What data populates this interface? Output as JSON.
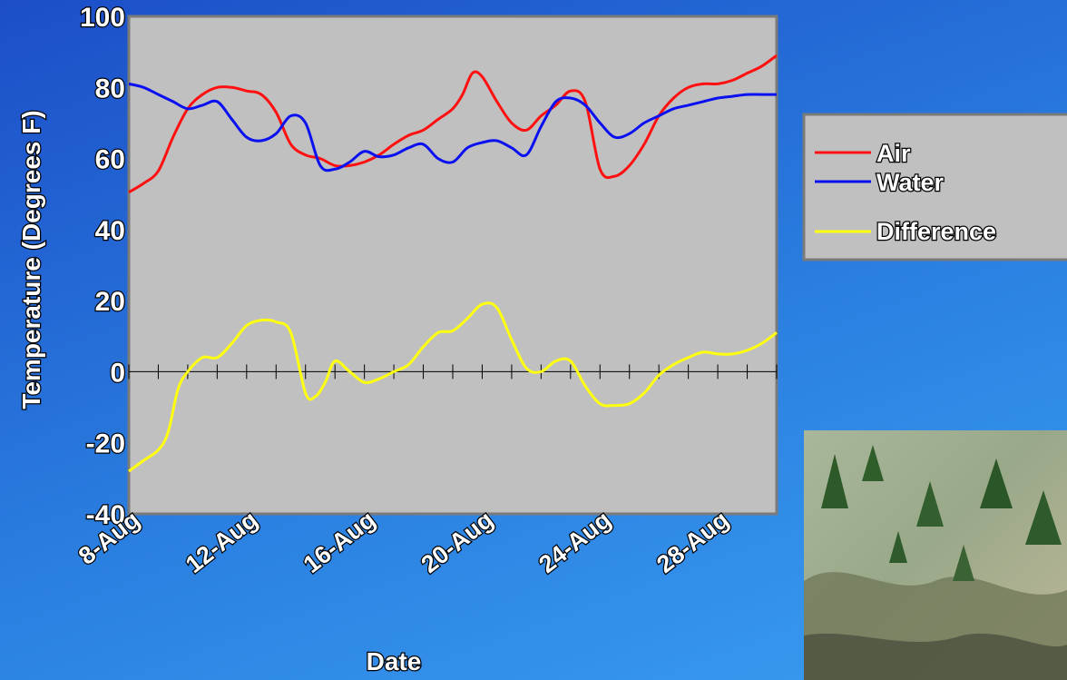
{
  "chart_data": {
    "type": "line",
    "title": "",
    "xlabel": "Date",
    "ylabel": "Temperature (Degrees F)",
    "ylim": [
      -40,
      100
    ],
    "yticks": [
      "100",
      "80",
      "60",
      "40",
      "20",
      "0",
      "-20",
      "-40"
    ],
    "xlim": [
      "8-Aug",
      "30-Aug"
    ],
    "xtick_labels": [
      "8-Aug",
      "12-Aug",
      "16-Aug",
      "20-Aug",
      "24-Aug",
      "28-Aug"
    ],
    "grid": false,
    "legend_position": "right",
    "series": [
      {
        "name": "Air",
        "color": "#ff1010",
        "points": [
          [
            "8-Aug",
            50.5
          ],
          [
            "8-Aug",
            53
          ],
          [
            "9-Aug",
            56.5
          ],
          [
            "9-Aug",
            66
          ],
          [
            "10-Aug",
            74
          ],
          [
            "10-Aug",
            78
          ],
          [
            "11-Aug",
            80
          ],
          [
            "11-Aug",
            80
          ],
          [
            "12-Aug",
            79
          ],
          [
            "12-Aug",
            78
          ],
          [
            "13-Aug",
            73
          ],
          [
            "13-Aug",
            64
          ],
          [
            "14-Aug",
            61
          ],
          [
            "14-Aug",
            60
          ],
          [
            "15-Aug",
            58
          ],
          [
            "15-Aug",
            58
          ],
          [
            "16-Aug",
            59
          ],
          [
            "16-Aug",
            61
          ],
          [
            "17-Aug",
            64
          ],
          [
            "17-Aug",
            66.5
          ],
          [
            "18-Aug",
            68
          ],
          [
            "18-Aug",
            71
          ],
          [
            "19-Aug",
            74
          ],
          [
            "19-Aug",
            78
          ],
          [
            "19-Aug",
            84
          ],
          [
            "20-Aug",
            83
          ],
          [
            "20-Aug",
            76
          ],
          [
            "21-Aug",
            70
          ],
          [
            "21-Aug",
            68
          ],
          [
            "22-Aug",
            72
          ],
          [
            "22-Aug",
            75
          ],
          [
            "23-Aug",
            79
          ],
          [
            "23-Aug",
            76
          ],
          [
            "24-Aug",
            57
          ],
          [
            "24-Aug",
            55
          ],
          [
            "25-Aug",
            58
          ],
          [
            "25-Aug",
            64
          ],
          [
            "26-Aug",
            72
          ],
          [
            "26-Aug",
            77
          ],
          [
            "27-Aug",
            80
          ],
          [
            "27-Aug",
            81
          ],
          [
            "28-Aug",
            81
          ],
          [
            "28-Aug",
            82
          ],
          [
            "29-Aug",
            84
          ],
          [
            "29-Aug",
            86
          ],
          [
            "30-Aug",
            89
          ]
        ]
      },
      {
        "name": "Water",
        "color": "#0a10f0",
        "points": [
          [
            "8-Aug",
            81
          ],
          [
            "8-Aug",
            80
          ],
          [
            "9-Aug",
            78
          ],
          [
            "9-Aug",
            76
          ],
          [
            "10-Aug",
            74
          ],
          [
            "10-Aug",
            75
          ],
          [
            "11-Aug",
            76
          ],
          [
            "11-Aug",
            71
          ],
          [
            "12-Aug",
            66
          ],
          [
            "12-Aug",
            65
          ],
          [
            "13-Aug",
            67
          ],
          [
            "13-Aug",
            72
          ],
          [
            "14-Aug",
            70
          ],
          [
            "14-Aug",
            58
          ],
          [
            "15-Aug",
            57
          ],
          [
            "15-Aug",
            59
          ],
          [
            "16-Aug",
            62
          ],
          [
            "16-Aug",
            60.5
          ],
          [
            "17-Aug",
            61
          ],
          [
            "17-Aug",
            63
          ],
          [
            "18-Aug",
            64
          ],
          [
            "18-Aug",
            60
          ],
          [
            "19-Aug",
            59
          ],
          [
            "19-Aug",
            63
          ],
          [
            "20-Aug",
            64.5
          ],
          [
            "20-Aug",
            65
          ],
          [
            "21-Aug",
            63
          ],
          [
            "21-Aug",
            61
          ],
          [
            "22-Aug",
            69
          ],
          [
            "22-Aug",
            76
          ],
          [
            "23-Aug",
            77
          ],
          [
            "23-Aug",
            75
          ],
          [
            "24-Aug",
            70
          ],
          [
            "24-Aug",
            66
          ],
          [
            "25-Aug",
            67
          ],
          [
            "25-Aug",
            70
          ],
          [
            "26-Aug",
            72
          ],
          [
            "26-Aug",
            74
          ],
          [
            "27-Aug",
            75
          ],
          [
            "27-Aug",
            76
          ],
          [
            "28-Aug",
            77
          ],
          [
            "28-Aug",
            77.5
          ],
          [
            "29-Aug",
            78
          ],
          [
            "29-Aug",
            78
          ],
          [
            "30-Aug",
            78
          ]
        ]
      },
      {
        "name": "Difference",
        "color": "#ffff10",
        "points": [
          [
            "8-Aug",
            -28
          ],
          [
            "8-Aug",
            -25
          ],
          [
            "9-Aug",
            -22
          ],
          [
            "9-Aug",
            -17
          ],
          [
            "9-Aug",
            -5
          ],
          [
            "10-Aug",
            0
          ],
          [
            "10-Aug",
            4
          ],
          [
            "11-Aug",
            4
          ],
          [
            "11-Aug",
            8
          ],
          [
            "12-Aug",
            13
          ],
          [
            "12-Aug",
            14.5
          ],
          [
            "13-Aug",
            14
          ],
          [
            "13-Aug",
            11
          ],
          [
            "14-Aug",
            -6
          ],
          [
            "14-Aug",
            -7
          ],
          [
            "14-Aug",
            -3
          ],
          [
            "15-Aug",
            3
          ],
          [
            "15-Aug",
            0
          ],
          [
            "16-Aug",
            -3
          ],
          [
            "16-Aug",
            -2
          ],
          [
            "17-Aug",
            0
          ],
          [
            "17-Aug",
            2
          ],
          [
            "18-Aug",
            7
          ],
          [
            "18-Aug",
            11
          ],
          [
            "19-Aug",
            11.5
          ],
          [
            "19-Aug",
            15
          ],
          [
            "20-Aug",
            19
          ],
          [
            "20-Aug",
            18
          ],
          [
            "21-Aug",
            9
          ],
          [
            "21-Aug",
            1
          ],
          [
            "22-Aug",
            0
          ],
          [
            "22-Aug",
            3
          ],
          [
            "23-Aug",
            3
          ],
          [
            "23-Aug",
            -4
          ],
          [
            "24-Aug",
            -9
          ],
          [
            "24-Aug",
            -9.5
          ],
          [
            "25-Aug",
            -9
          ],
          [
            "25-Aug",
            -6
          ],
          [
            "26-Aug",
            -1
          ],
          [
            "26-Aug",
            2
          ],
          [
            "27-Aug",
            4
          ],
          [
            "27-Aug",
            5.5
          ],
          [
            "28-Aug",
            5
          ],
          [
            "28-Aug",
            5
          ],
          [
            "29-Aug",
            6
          ],
          [
            "29-Aug",
            8
          ],
          [
            "30-Aug",
            11
          ]
        ]
      }
    ]
  }
}
